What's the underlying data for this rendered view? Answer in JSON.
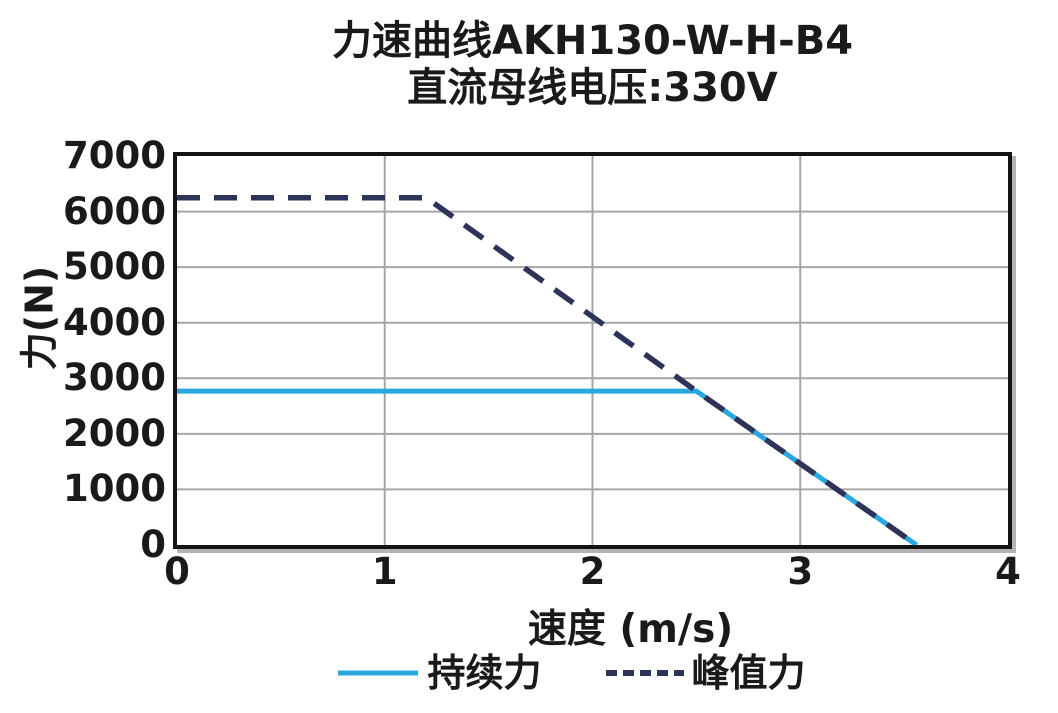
{
  "chart_data": {
    "type": "line",
    "title": "力速曲线AKH130-W-H-B4",
    "subtitle": "直流母线电压:330V",
    "xlabel": "速度 (m/s)",
    "ylabel": "力(N)",
    "xlim": [
      0,
      4
    ],
    "ylim": [
      0,
      7000
    ],
    "x_ticks": [
      0,
      1,
      2,
      3,
      4
    ],
    "y_ticks": [
      0,
      1000,
      2000,
      3000,
      4000,
      5000,
      6000,
      7000
    ],
    "grid": true,
    "legend_position": "bottom",
    "series": [
      {
        "name": "持续力",
        "style": "solid",
        "color": "#29A8DF",
        "points": [
          [
            0,
            2770
          ],
          [
            2.5,
            2770
          ],
          [
            3.56,
            0
          ]
        ]
      },
      {
        "name": "峰值力",
        "style": "dashed",
        "color": "#2E335A",
        "points": [
          [
            0,
            6250
          ],
          [
            1.2,
            6250
          ],
          [
            2.5,
            2770
          ],
          [
            3.56,
            0
          ]
        ]
      }
    ]
  },
  "colors": {
    "gridline": "#a6a6a6",
    "frame": "#141414",
    "frame_shadow": "#b3b3b3",
    "text": "#1a1a1a",
    "background": "#ffffff"
  }
}
